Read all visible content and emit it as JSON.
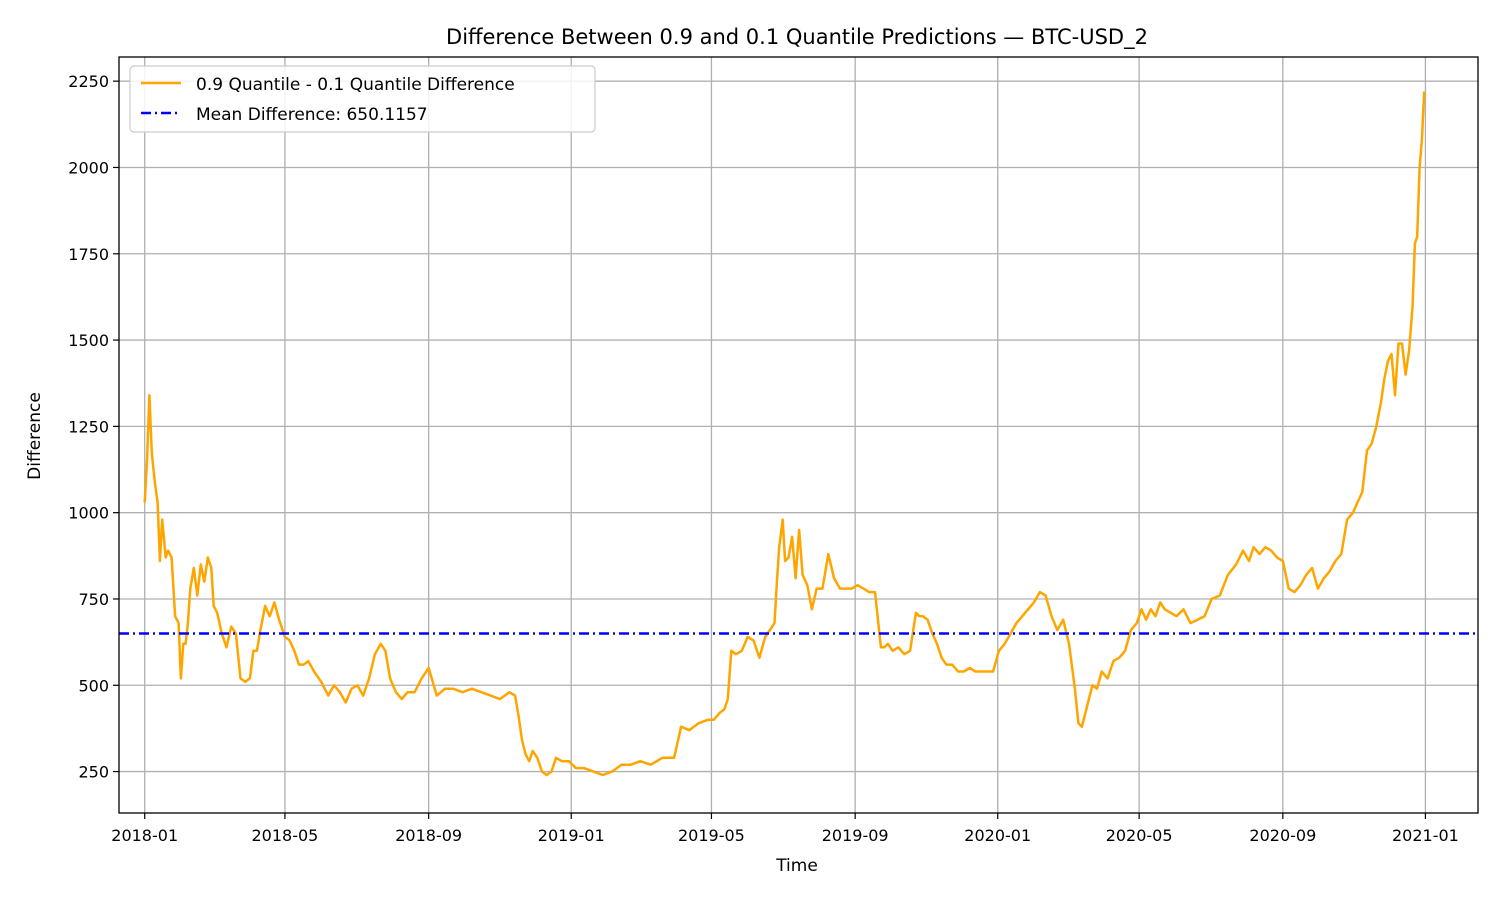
{
  "chart_data": {
    "type": "line",
    "title": "Difference Between 0.9 and 0.1 Quantile Predictions — BTC-USD_2",
    "xlabel": "Time",
    "ylabel": "Difference",
    "x_range": [
      "2017-12-10",
      "2021-02-15"
    ],
    "ylim": [
      130,
      2320
    ],
    "y_ticks": [
      250,
      500,
      750,
      1000,
      1250,
      1500,
      1750,
      2000,
      2250
    ],
    "x_ticks": [
      {
        "date": "2018-01-01",
        "label": "2018-01"
      },
      {
        "date": "2018-05-01",
        "label": "2018-05"
      },
      {
        "date": "2018-09-01",
        "label": "2018-09"
      },
      {
        "date": "2019-01-01",
        "label": "2019-01"
      },
      {
        "date": "2019-05-01",
        "label": "2019-05"
      },
      {
        "date": "2019-09-01",
        "label": "2019-09"
      },
      {
        "date": "2020-01-01",
        "label": "2020-01"
      },
      {
        "date": "2020-05-01",
        "label": "2020-05"
      },
      {
        "date": "2020-09-01",
        "label": "2020-09"
      },
      {
        "date": "2021-01-01",
        "label": "2021-01"
      }
    ],
    "grid": true,
    "legend_position": "top-left",
    "mean_difference": 650.1157,
    "series": [
      {
        "name": "0.9 Quantile - 0.1 Quantile Difference",
        "color": "#FFA500",
        "style": "solid",
        "x": [
          "2018-01-01",
          "2018-01-03",
          "2018-01-05",
          "2018-01-07",
          "2018-01-08",
          "2018-01-10",
          "2018-01-12",
          "2018-01-14",
          "2018-01-16",
          "2018-01-19",
          "2018-01-21",
          "2018-01-24",
          "2018-01-27",
          "2018-01-30",
          "2018-02-01",
          "2018-02-03",
          "2018-02-05",
          "2018-02-07",
          "2018-02-09",
          "2018-02-12",
          "2018-02-15",
          "2018-02-18",
          "2018-02-21",
          "2018-02-24",
          "2018-02-27",
          "2018-03-01",
          "2018-03-04",
          "2018-03-08",
          "2018-03-12",
          "2018-03-16",
          "2018-03-20",
          "2018-03-24",
          "2018-03-28",
          "2018-04-01",
          "2018-04-04",
          "2018-04-07",
          "2018-04-10",
          "2018-04-14",
          "2018-04-18",
          "2018-04-22",
          "2018-04-26",
          "2018-05-01",
          "2018-05-05",
          "2018-05-09",
          "2018-05-13",
          "2018-05-17",
          "2018-05-21",
          "2018-05-26",
          "2018-06-01",
          "2018-06-07",
          "2018-06-12",
          "2018-06-17",
          "2018-06-22",
          "2018-06-27",
          "2018-07-02",
          "2018-07-07",
          "2018-07-12",
          "2018-07-17",
          "2018-07-22",
          "2018-07-26",
          "2018-07-30",
          "2018-08-04",
          "2018-08-09",
          "2018-08-14",
          "2018-08-20",
          "2018-08-26",
          "2018-09-01",
          "2018-09-08",
          "2018-09-15",
          "2018-09-22",
          "2018-09-30",
          "2018-10-08",
          "2018-10-16",
          "2018-10-24",
          "2018-11-01",
          "2018-11-09",
          "2018-11-14",
          "2018-11-17",
          "2018-11-20",
          "2018-11-23",
          "2018-11-26",
          "2018-11-29",
          "2018-12-03",
          "2018-12-07",
          "2018-12-11",
          "2018-12-15",
          "2018-12-19",
          "2018-12-24",
          "2018-12-30",
          "2019-01-05",
          "2019-01-12",
          "2019-01-20",
          "2019-01-28",
          "2019-02-05",
          "2019-02-13",
          "2019-02-21",
          "2019-03-01",
          "2019-03-10",
          "2019-03-20",
          "2019-03-30",
          "2019-04-05",
          "2019-04-12",
          "2019-04-20",
          "2019-04-28",
          "2019-05-03",
          "2019-05-08",
          "2019-05-12",
          "2019-05-15",
          "2019-05-18",
          "2019-05-22",
          "2019-05-27",
          "2019-06-01",
          "2019-06-06",
          "2019-06-11",
          "2019-06-16",
          "2019-06-20",
          "2019-06-24",
          "2019-06-26",
          "2019-06-28",
          "2019-07-01",
          "2019-07-03",
          "2019-07-06",
          "2019-07-09",
          "2019-07-12",
          "2019-07-15",
          "2019-07-18",
          "2019-07-22",
          "2019-07-26",
          "2019-07-30",
          "2019-08-04",
          "2019-08-09",
          "2019-08-14",
          "2019-08-19",
          "2019-08-24",
          "2019-08-29",
          "2019-09-03",
          "2019-09-08",
          "2019-09-13",
          "2019-09-18",
          "2019-09-23",
          "2019-09-26",
          "2019-09-29",
          "2019-10-03",
          "2019-10-08",
          "2019-10-13",
          "2019-10-18",
          "2019-10-23",
          "2019-10-26",
          "2019-10-29",
          "2019-11-02",
          "2019-11-06",
          "2019-11-10",
          "2019-11-14",
          "2019-11-18",
          "2019-11-23",
          "2019-11-28",
          "2019-12-03",
          "2019-12-08",
          "2019-12-13",
          "2019-12-18",
          "2019-12-23",
          "2019-12-28",
          "2020-01-02",
          "2020-01-07",
          "2020-01-12",
          "2020-01-17",
          "2020-01-22",
          "2020-01-27",
          "2020-02-01",
          "2020-02-06",
          "2020-02-11",
          "2020-02-16",
          "2020-02-21",
          "2020-02-26",
          "2020-03-02",
          "2020-03-07",
          "2020-03-10",
          "2020-03-13",
          "2020-03-16",
          "2020-03-19",
          "2020-03-22",
          "2020-03-26",
          "2020-03-30",
          "2020-04-04",
          "2020-04-09",
          "2020-04-14",
          "2020-04-19",
          "2020-04-24",
          "2020-04-29",
          "2020-05-03",
          "2020-05-07",
          "2020-05-11",
          "2020-05-15",
          "2020-05-19",
          "2020-05-23",
          "2020-05-28",
          "2020-06-02",
          "2020-06-08",
          "2020-06-14",
          "2020-06-20",
          "2020-06-26",
          "2020-07-02",
          "2020-07-09",
          "2020-07-16",
          "2020-07-23",
          "2020-07-29",
          "2020-08-03",
          "2020-08-07",
          "2020-08-12",
          "2020-08-17",
          "2020-08-22",
          "2020-08-27",
          "2020-09-01",
          "2020-09-06",
          "2020-09-11",
          "2020-09-16",
          "2020-09-21",
          "2020-09-26",
          "2020-10-01",
          "2020-10-06",
          "2020-10-11",
          "2020-10-16",
          "2020-10-21",
          "2020-10-26",
          "2020-10-31",
          "2020-11-04",
          "2020-11-08",
          "2020-11-12",
          "2020-11-16",
          "2020-11-20",
          "2020-11-24",
          "2020-11-27",
          "2020-11-30",
          "2020-12-03",
          "2020-12-06",
          "2020-12-09",
          "2020-12-12",
          "2020-12-15",
          "2020-12-18",
          "2020-12-21",
          "2020-12-23",
          "2020-12-25",
          "2020-12-27",
          "2020-12-29",
          "2020-12-31"
        ],
        "values": [
          1030,
          1150,
          1340,
          1180,
          1140,
          1080,
          1030,
          860,
          980,
          870,
          890,
          870,
          700,
          680,
          520,
          620,
          620,
          680,
          780,
          840,
          760,
          850,
          800,
          870,
          840,
          730,
          710,
          650,
          610,
          670,
          650,
          520,
          510,
          520,
          600,
          600,
          660,
          730,
          700,
          740,
          690,
          640,
          630,
          600,
          560,
          560,
          570,
          540,
          510,
          470,
          500,
          480,
          450,
          490,
          500,
          470,
          520,
          590,
          620,
          600,
          520,
          480,
          460,
          480,
          480,
          520,
          550,
          470,
          490,
          490,
          480,
          490,
          480,
          470,
          460,
          480,
          470,
          410,
          340,
          300,
          280,
          310,
          290,
          250,
          240,
          250,
          290,
          280,
          280,
          260,
          260,
          250,
          240,
          250,
          270,
          270,
          280,
          270,
          290,
          290,
          380,
          370,
          390,
          400,
          400,
          420,
          430,
          460,
          600,
          590,
          600,
          640,
          630,
          580,
          640,
          660,
          680,
          800,
          900,
          980,
          860,
          870,
          930,
          810,
          950,
          820,
          790,
          720,
          780,
          780,
          880,
          810,
          780,
          780,
          780,
          790,
          780,
          770,
          770,
          610,
          610,
          620,
          600,
          610,
          590,
          600,
          710,
          700,
          700,
          690,
          650,
          620,
          580,
          560,
          560,
          540,
          540,
          550,
          540,
          540,
          540,
          540,
          600,
          620,
          650,
          680,
          700,
          720,
          740,
          770,
          760,
          700,
          660,
          690,
          620,
          490,
          390,
          380,
          420,
          460,
          500,
          490,
          540,
          520,
          570,
          580,
          600,
          660,
          680,
          720,
          690,
          720,
          700,
          740,
          720,
          710,
          700,
          720,
          680,
          690,
          700,
          750,
          760,
          820,
          850,
          890,
          860,
          900,
          880,
          900,
          890,
          870,
          860,
          780,
          770,
          790,
          820,
          840,
          780,
          810,
          830,
          860,
          880,
          980,
          1000,
          1030,
          1060,
          1180,
          1200,
          1250,
          1320,
          1390,
          1440,
          1460,
          1340,
          1490,
          1490,
          1400,
          1470,
          1600,
          1780,
          1800,
          2000,
          2080,
          2220
        ]
      },
      {
        "name": "Mean Difference: 650.1157",
        "color": "#0000FF",
        "style": "dash-dot",
        "x": [
          "2017-12-10",
          "2021-02-15"
        ],
        "values": [
          650.1157,
          650.1157
        ]
      }
    ]
  }
}
